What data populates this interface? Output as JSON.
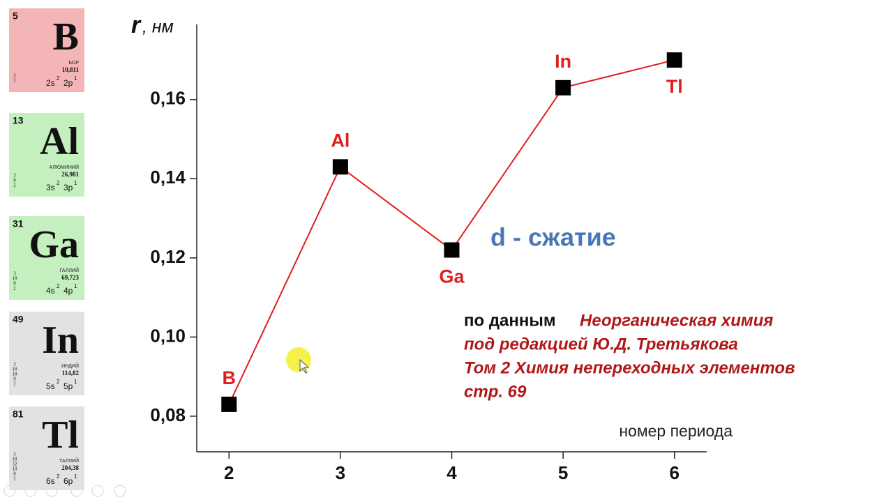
{
  "chart_data": {
    "type": "line",
    "y_label_symbol": "r",
    "y_label_rest": ", нм",
    "x_label": "номер периода",
    "x": [
      2,
      3,
      4,
      5,
      6
    ],
    "series": [
      {
        "color": "#e01e1e",
        "marker_color": "#000000",
        "values": [
          0.083,
          0.143,
          0.122,
          0.163,
          0.17
        ]
      }
    ],
    "point_labels": [
      "B",
      "Al",
      "Ga",
      "In",
      "Tl"
    ],
    "xlim": [
      1.71,
      6.29
    ],
    "xticks": [
      2,
      3,
      4,
      5,
      6
    ],
    "ylim": [
      0.071,
      0.179
    ],
    "yticks": [
      {
        "value": 0.08,
        "label": "0,08"
      },
      {
        "value": 0.1,
        "label": "0,10"
      },
      {
        "value": 0.12,
        "label": "0,12"
      },
      {
        "value": 0.14,
        "label": "0,14"
      },
      {
        "value": 0.16,
        "label": "0,16"
      }
    ],
    "annotation": "d - сжатие",
    "source_prefix": "по данным",
    "source_lines": [
      "Неорганическая химия",
      "под редакцией Ю.Д. Третьякова",
      "Том 2 Химия непереходных элементов",
      "стр. 69"
    ]
  },
  "elements": [
    {
      "number": "5",
      "symbol": "B",
      "name": "БОР",
      "mass": "10,811",
      "shells": [
        "3",
        "2"
      ],
      "config": [
        [
          "2s",
          "2"
        ],
        [
          "2p",
          "1"
        ]
      ],
      "color": "#f4b5b7"
    },
    {
      "number": "13",
      "symbol": "Al",
      "name": "АЛЮМИНИЙ",
      "mass": "26,981",
      "shells": [
        "3",
        "8",
        "2"
      ],
      "config": [
        [
          "3s",
          "2"
        ],
        [
          "3p",
          "1"
        ]
      ],
      "color": "#c4efbf"
    },
    {
      "number": "31",
      "symbol": "Ga",
      "name": "ГАЛЛИЙ",
      "mass": "69,723",
      "shells": [
        "3",
        "18",
        "8",
        "2"
      ],
      "config": [
        [
          "4s",
          "2"
        ],
        [
          "4p",
          "1"
        ]
      ],
      "color": "#c4efbf"
    },
    {
      "number": "49",
      "symbol": "In",
      "name": "ИНДИЙ",
      "mass": "114,82",
      "shells": [
        "3",
        "18",
        "18",
        "8",
        "2"
      ],
      "config": [
        [
          "5s",
          "2"
        ],
        [
          "5p",
          "1"
        ]
      ],
      "color": "#e2e2e2"
    },
    {
      "number": "81",
      "symbol": "Tl",
      "name": "ТАЛЛИЙ",
      "mass": "204,38",
      "shells": [
        "3",
        "18",
        "32",
        "18",
        "8",
        "2"
      ],
      "config": [
        [
          "6s",
          "2"
        ],
        [
          "6p",
          "1"
        ]
      ],
      "color": "#e2e2e2"
    }
  ]
}
